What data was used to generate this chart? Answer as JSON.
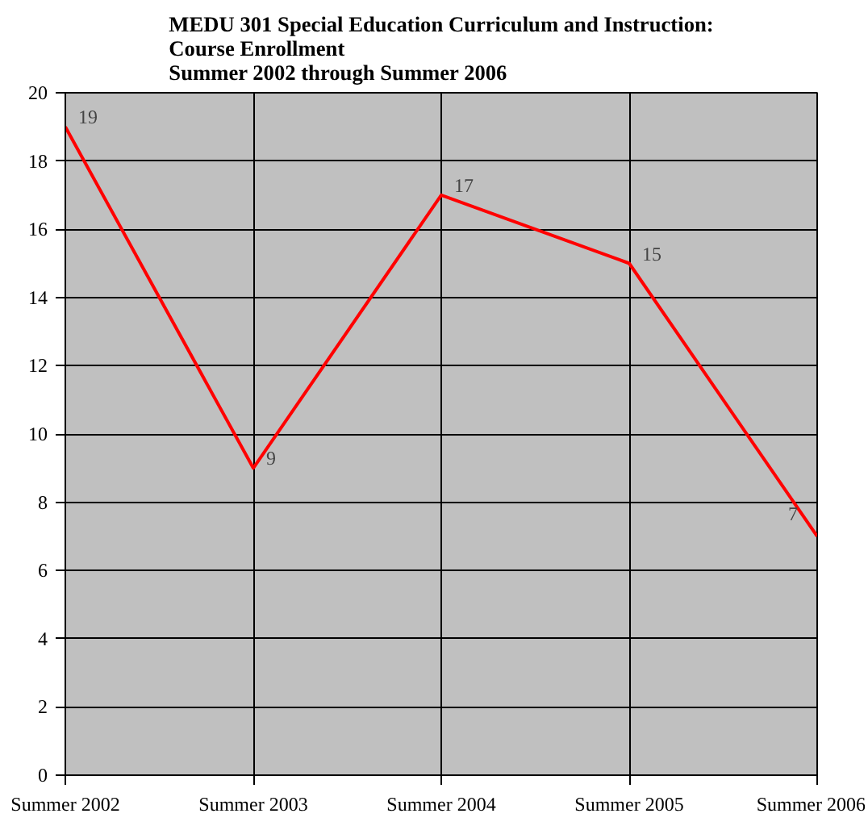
{
  "chart_data": {
    "type": "line",
    "title": "MEDU 301 Special Education Curriculum and Instruction:\nCourse Enrollment\nSummer 2002 through Summer 2006",
    "categories": [
      "Summer 2002",
      "Summer 2003",
      "Summer 2004",
      "Summer 2005",
      "Summer 2006"
    ],
    "series": [
      {
        "color": "#ff0000",
        "values": [
          19,
          9,
          17,
          15,
          7
        ]
      }
    ],
    "ylim": [
      0,
      20
    ],
    "yticks": [
      0,
      2,
      4,
      6,
      8,
      10,
      12,
      14,
      16,
      18,
      20
    ],
    "grid": true,
    "data_labels": true,
    "marker": "none",
    "line_style": "solid"
  }
}
